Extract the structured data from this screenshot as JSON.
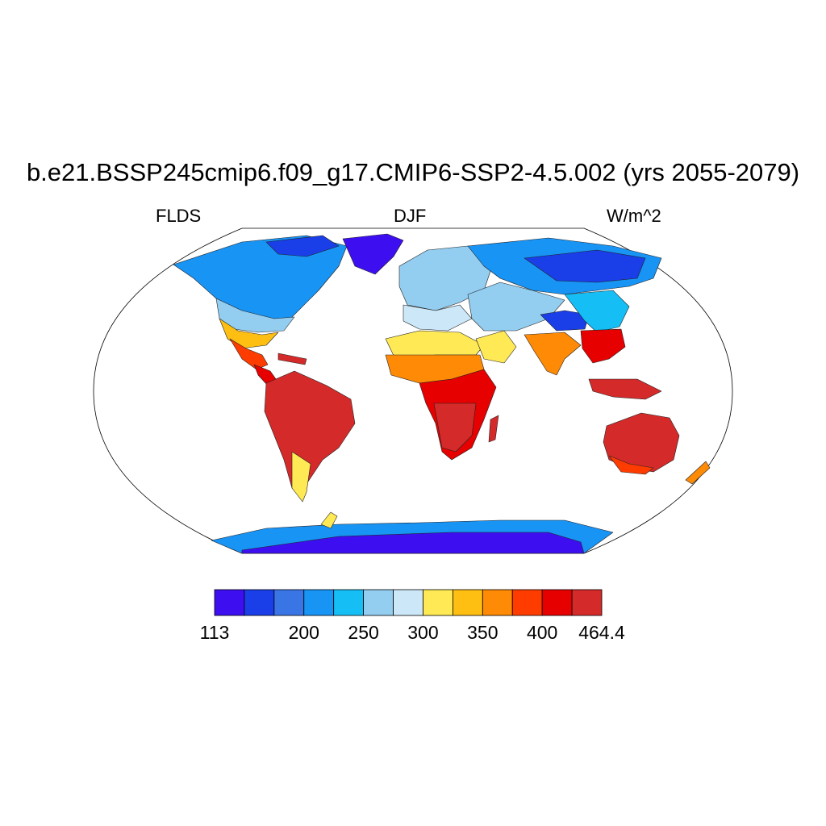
{
  "title": "b.e21.BSSP245cmip6.f09_g17.CMIP6-SSP2-4.5.002 (yrs 2055-2079)",
  "left_label": "FLDS",
  "center_label": "DJF",
  "right_label": "W/m^2",
  "colorbar": {
    "colors": [
      "#3d0ff0",
      "#1a3fe8",
      "#3a75e6",
      "#1894f5",
      "#15bff5",
      "#93cdf0",
      "#cce8f8",
      "#ffe955",
      "#ffbf12",
      "#ff8a05",
      "#ff3c00",
      "#e70000",
      "#d52a2a"
    ],
    "ticks": [
      {
        "index": 0,
        "label": "113"
      },
      {
        "index": 3,
        "label": "200"
      },
      {
        "index": 5,
        "label": "250"
      },
      {
        "index": 7,
        "label": "300"
      },
      {
        "index": 9,
        "label": "350"
      },
      {
        "index": 11,
        "label": "400"
      },
      {
        "index": 13,
        "label": "464.4"
      }
    ]
  }
}
